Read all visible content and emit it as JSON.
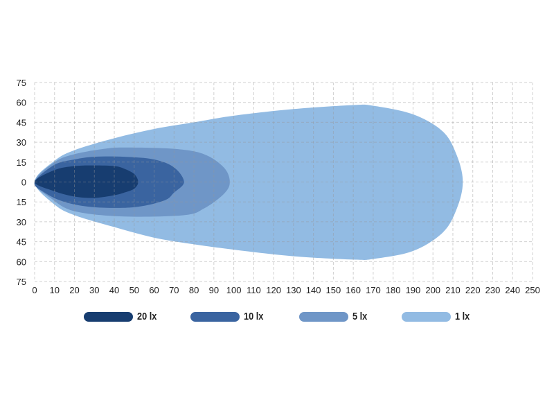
{
  "chart_data": {
    "type": "area",
    "title": "",
    "xlabel": "",
    "ylabel": "",
    "xlim": [
      0,
      250
    ],
    "ylim": [
      -75,
      75
    ],
    "x_ticks": [
      "0",
      "10",
      "20",
      "30",
      "40",
      "50",
      "60",
      "70",
      "80",
      "90",
      "100",
      "110",
      "120",
      "130",
      "140",
      "150",
      "160",
      "170",
      "180",
      "190",
      "200",
      "210",
      "220",
      "230",
      "240",
      "250"
    ],
    "y_ticks": [
      "75",
      "60",
      "45",
      "30",
      "15",
      "0",
      "15",
      "30",
      "45",
      "60",
      "75"
    ],
    "grid": true,
    "legend_position": "bottom",
    "series": [
      {
        "name": "1 lx",
        "color": "#92bbe3",
        "upper": [
          [
            0,
            0
          ],
          [
            10,
            16
          ],
          [
            20,
            24
          ],
          [
            40,
            33
          ],
          [
            60,
            40
          ],
          [
            80,
            45
          ],
          [
            100,
            50
          ],
          [
            130,
            55
          ],
          [
            160,
            58
          ],
          [
            170,
            57.5
          ],
          [
            190,
            51
          ],
          [
            205,
            38
          ],
          [
            212,
            20
          ],
          [
            215,
            0
          ]
        ],
        "lower": [
          [
            212,
            -20
          ],
          [
            205,
            -38
          ],
          [
            190,
            -52
          ],
          [
            170,
            -58
          ],
          [
            160,
            -58.5
          ],
          [
            130,
            -56
          ],
          [
            100,
            -51
          ],
          [
            80,
            -47
          ],
          [
            60,
            -42
          ],
          [
            40,
            -34
          ],
          [
            20,
            -25
          ],
          [
            10,
            -17
          ]
        ]
      },
      {
        "name": "5 lx",
        "color": "#6f96c7",
        "upper": [
          [
            0,
            0
          ],
          [
            10,
            15
          ],
          [
            20,
            21
          ],
          [
            35,
            25
          ],
          [
            45,
            26
          ],
          [
            70,
            25
          ],
          [
            85,
            21
          ],
          [
            95,
            11
          ],
          [
            98,
            0
          ]
        ],
        "lower": [
          [
            95,
            -9
          ],
          [
            85,
            -20
          ],
          [
            75,
            -25
          ],
          [
            45,
            -26
          ],
          [
            20,
            -22
          ],
          [
            8,
            -12
          ]
        ]
      },
      {
        "name": "10 lx",
        "color": "#3a64a0",
        "upper": [
          [
            0,
            0
          ],
          [
            10,
            13
          ],
          [
            20,
            17
          ],
          [
            30,
            19
          ],
          [
            45,
            19
          ],
          [
            60,
            17
          ],
          [
            70,
            11
          ],
          [
            75,
            0
          ]
        ],
        "lower": [
          [
            70,
            -8
          ],
          [
            65,
            -14
          ],
          [
            50,
            -19
          ],
          [
            30,
            -19
          ],
          [
            15,
            -15
          ],
          [
            5,
            -8
          ]
        ]
      },
      {
        "name": "20 lx",
        "color": "#173d70",
        "upper": [
          [
            0,
            0
          ],
          [
            10,
            9
          ],
          [
            20,
            12
          ],
          [
            30,
            12.5
          ],
          [
            40,
            12
          ],
          [
            45,
            10
          ],
          [
            50,
            6
          ],
          [
            52,
            0
          ]
        ],
        "lower": [
          [
            50,
            -5
          ],
          [
            45,
            -8
          ],
          [
            40,
            -10
          ],
          [
            30,
            -12
          ],
          [
            20,
            -11
          ],
          [
            10,
            -7
          ]
        ]
      }
    ],
    "legend": [
      {
        "label": "20 lx",
        "color": "#173d70"
      },
      {
        "label": "10 lx",
        "color": "#3a64a0"
      },
      {
        "label": "5 lx",
        "color": "#6f96c7"
      },
      {
        "label": "1 lx",
        "color": "#92bbe3"
      }
    ]
  }
}
